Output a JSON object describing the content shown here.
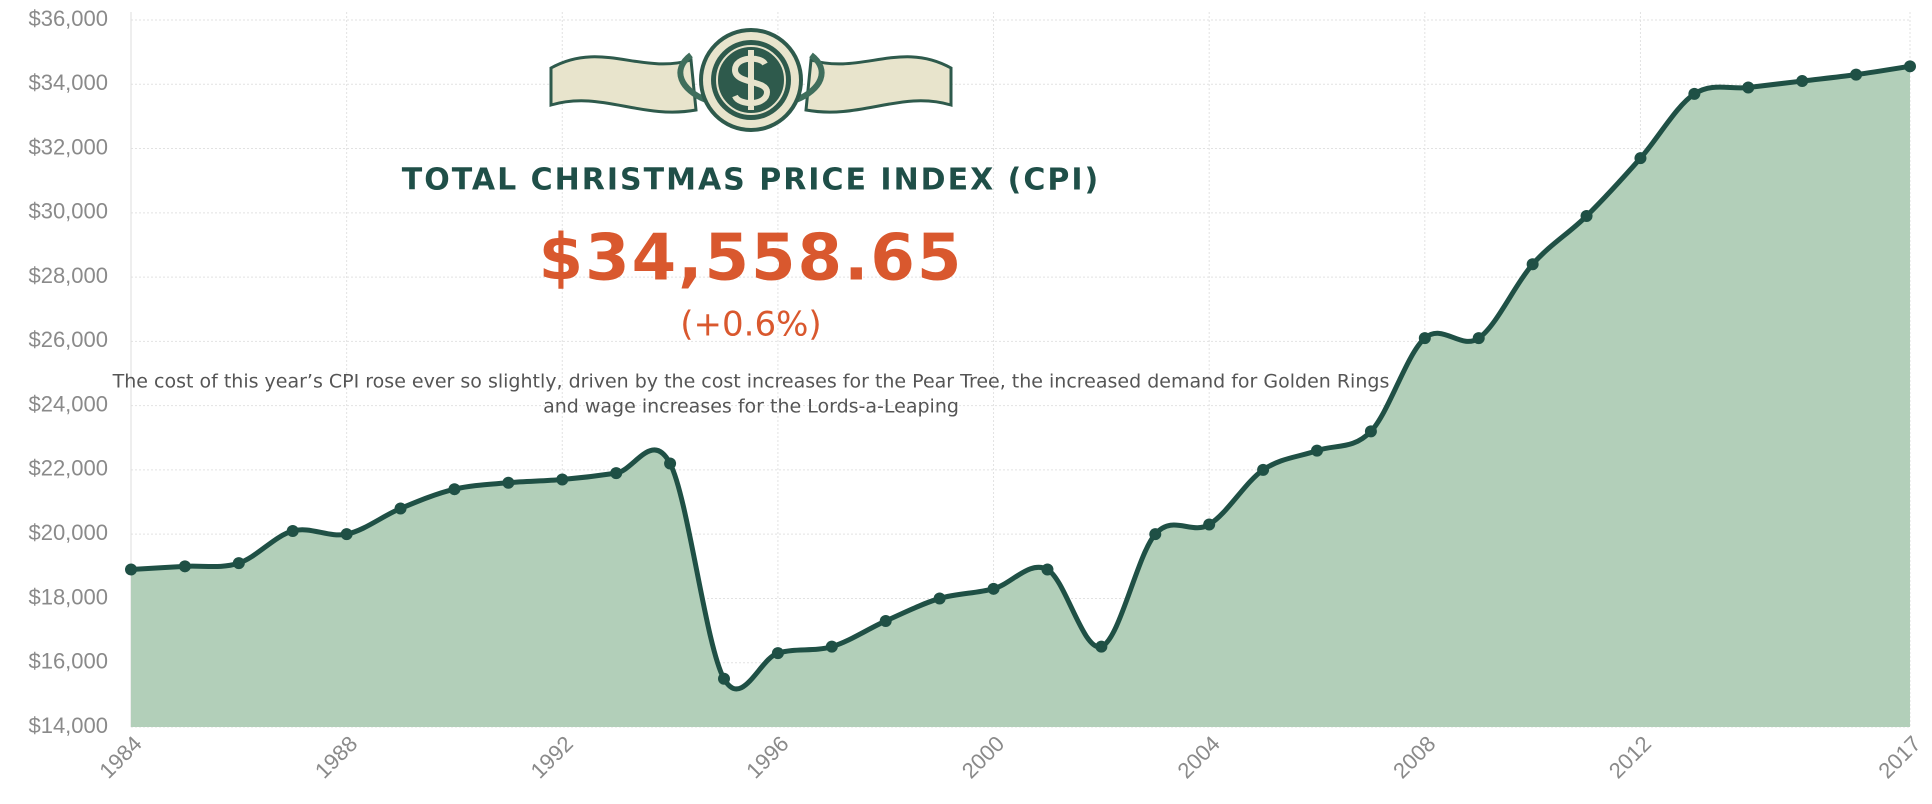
{
  "chart_data": {
    "type": "area",
    "title": "TOTAL CHRISTMAS PRICE INDEX (CPI)",
    "headline_value": "$34,558.65",
    "headline_change": "(+0.6%)",
    "description": [
      "The cost of this year’s CPI rose ever so slightly, driven by the cost increases for the Pear Tree, the increased demand for Golden Rings",
      "and wage increases for the Lords-a-Leaping"
    ],
    "x": [
      1984,
      1985,
      1986,
      1987,
      1988,
      1989,
      1990,
      1991,
      1992,
      1993,
      1994,
      1995,
      1996,
      1997,
      1998,
      1999,
      2000,
      2001,
      2002,
      2003,
      2004,
      2005,
      2006,
      2007,
      2008,
      2009,
      2010,
      2011,
      2012,
      2013,
      2014,
      2015,
      2016,
      2017
    ],
    "values": [
      18900,
      19000,
      19100,
      20100,
      20000,
      20800,
      21400,
      21600,
      21700,
      21900,
      22200,
      15500,
      16300,
      16500,
      17300,
      18000,
      18300,
      18900,
      16500,
      20000,
      20300,
      22000,
      22600,
      23200,
      26100,
      26100,
      28400,
      29900,
      31700,
      33700,
      33900,
      34100,
      34300,
      34558.65
    ],
    "color": "#1f5045",
    "fill": "#b2cfb9",
    "xlim": [
      1984,
      2017
    ],
    "xticks": [
      1984,
      1988,
      1992,
      1996,
      2000,
      2004,
      2008,
      2012,
      2017
    ],
    "ylim": [
      14000,
      36000
    ],
    "yticks": [
      {
        "value": 14000,
        "label": "$14,000"
      },
      {
        "value": 16000,
        "label": "$16,000"
      },
      {
        "value": 18000,
        "label": "$18,000"
      },
      {
        "value": 20000,
        "label": "$20,000"
      },
      {
        "value": 22000,
        "label": "$22,000"
      },
      {
        "value": 24000,
        "label": "$24,000"
      },
      {
        "value": 26000,
        "label": "$26,000"
      },
      {
        "value": 28000,
        "label": "$28,000"
      },
      {
        "value": 30000,
        "label": "$30,000"
      },
      {
        "value": 32000,
        "label": "$32,000"
      },
      {
        "value": 34000,
        "label": "$34,000"
      },
      {
        "value": 36000,
        "label": "$36,000"
      }
    ],
    "grid": true
  }
}
